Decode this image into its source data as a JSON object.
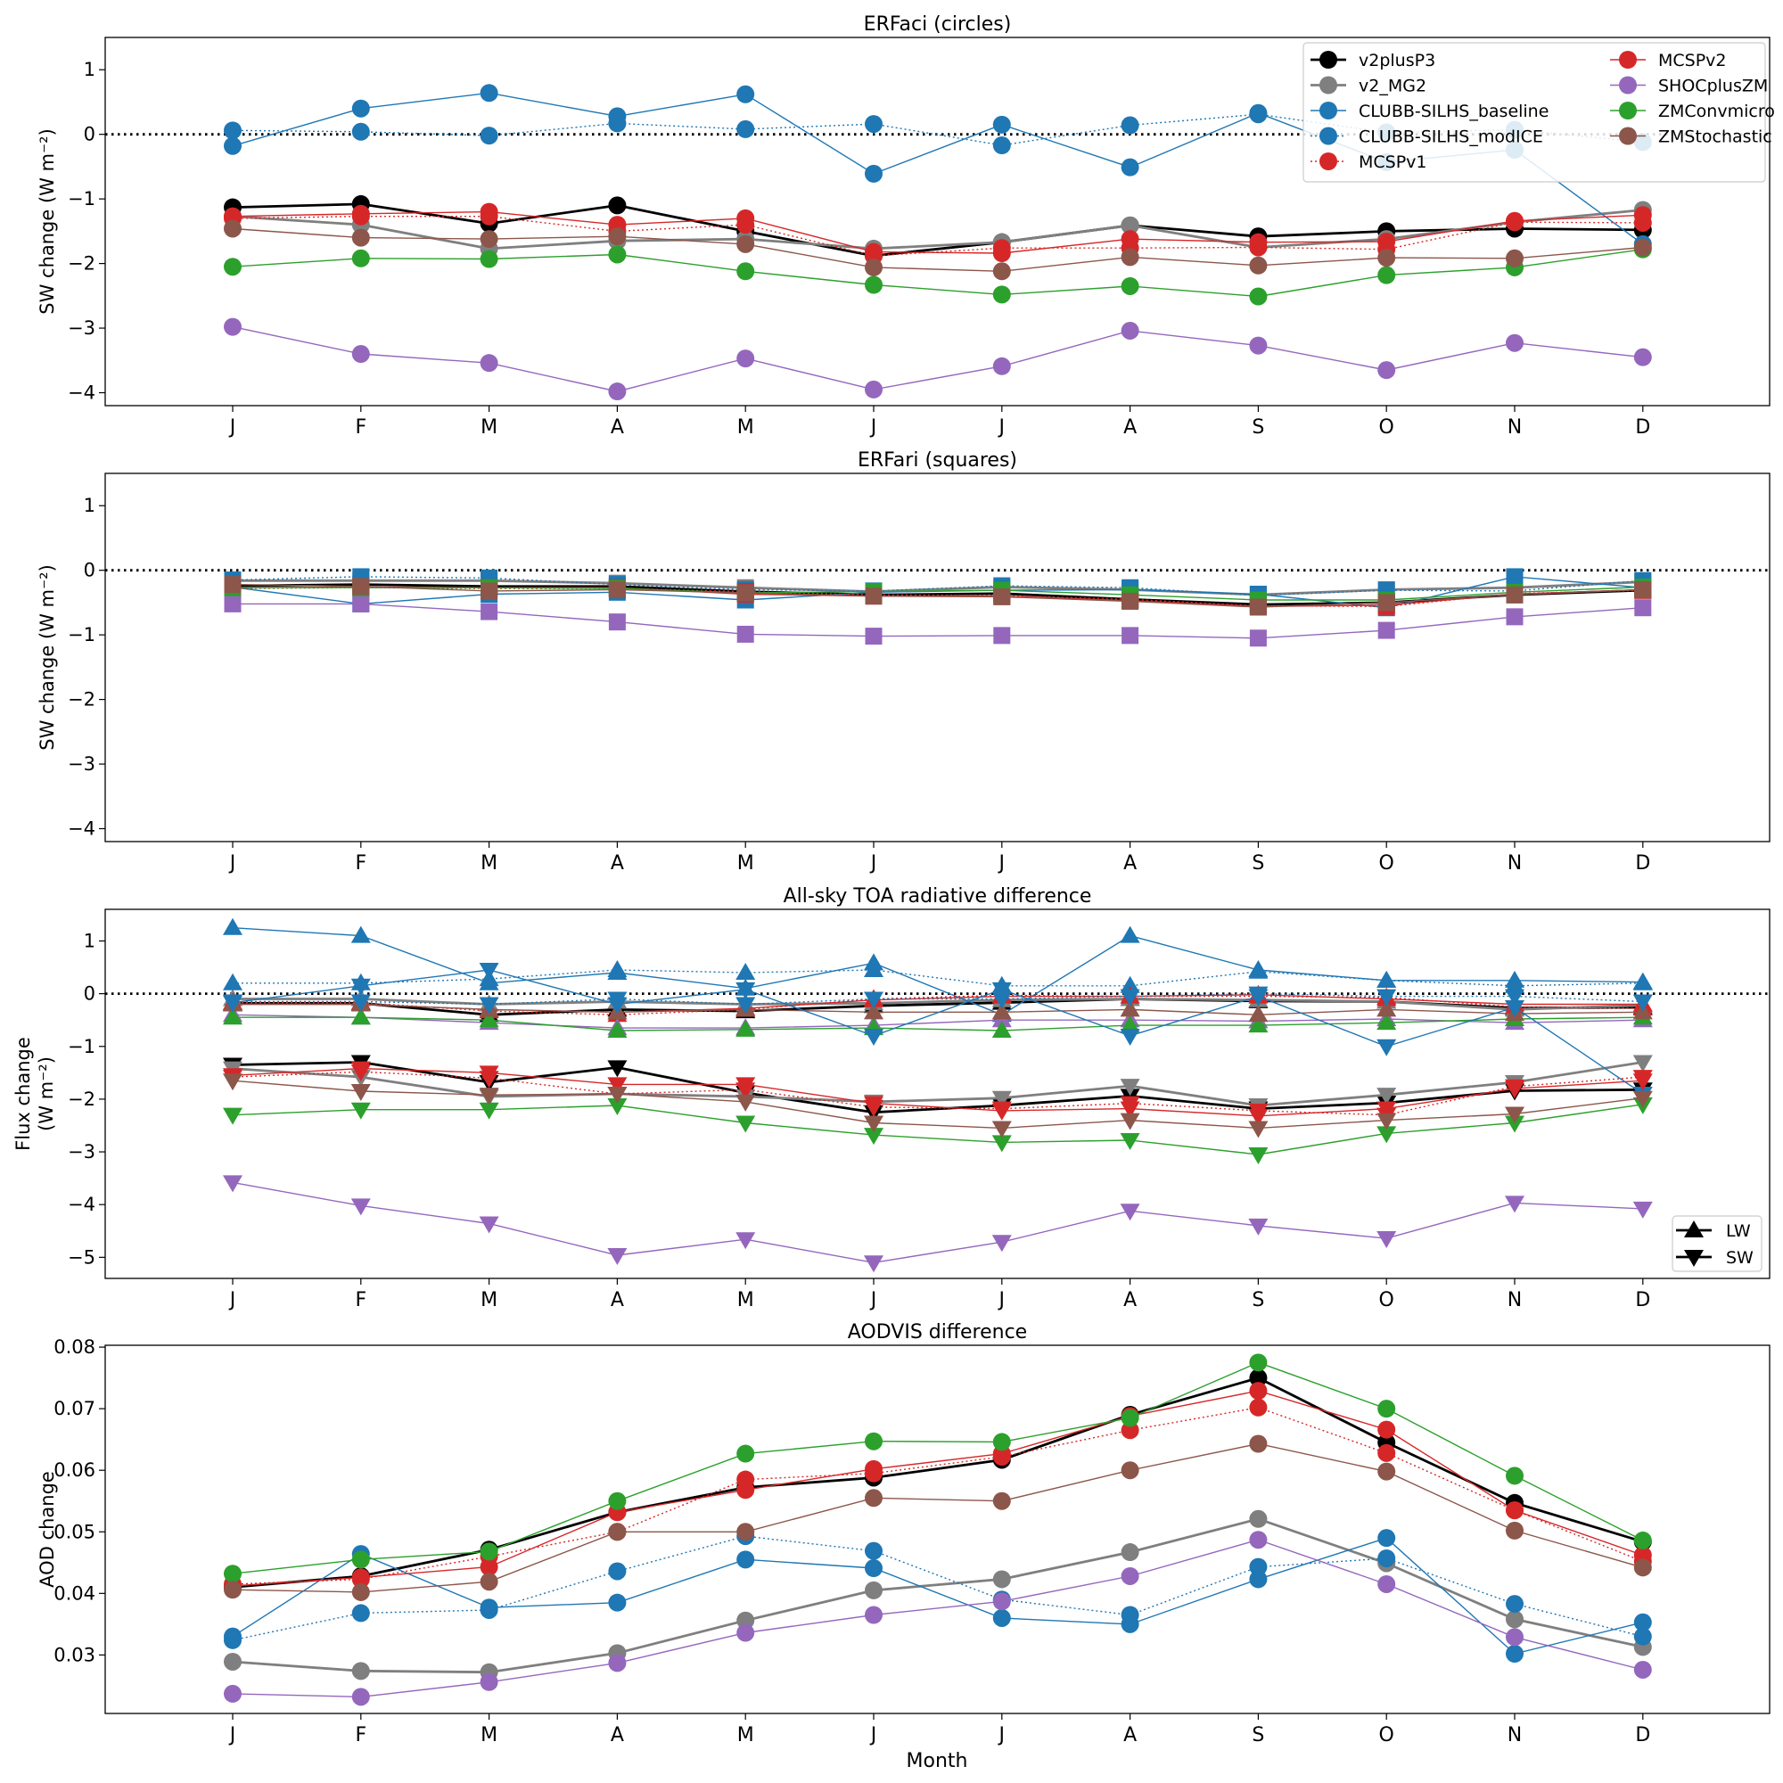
{
  "figure": {
    "xlabel": "Month"
  },
  "months": [
    "J",
    "F",
    "M",
    "A",
    "M",
    "J",
    "J",
    "A",
    "S",
    "O",
    "N",
    "D"
  ],
  "colors": {
    "v2plusP3": "#000000",
    "v2_MG2": "#7f7f7f",
    "CLUBB-SILHS_baseline": "#1f77b4",
    "CLUBB-SILHS_modICE": "#1f77b4",
    "MCSPv1": "#d62728",
    "MCSPv2": "#d62728",
    "SHOCplusZM": "#9467bd",
    "ZMConvmicro": "#2ca02c",
    "ZMStochastic": "#8c564b"
  },
  "legend": {
    "entries": [
      "v2plusP3",
      "v2_MG2",
      "CLUBB-SILHS_baseline",
      "CLUBB-SILHS_modICE",
      "MCSPv1",
      "MCSPv2",
      "SHOCplusZM",
      "ZMConvmicro",
      "ZMStochastic"
    ],
    "markers": [
      "LW",
      "SW"
    ]
  },
  "chart_data": [
    {
      "type": "line",
      "title": "ERFaci (circles)",
      "ylabel": "SW change (W m⁻²)",
      "ylim": [
        -4.2,
        1.5
      ],
      "yticks": [
        1,
        0,
        -1,
        -2,
        -3,
        -4
      ],
      "ytick_labels": [
        "1",
        "0",
        "−1",
        "−2",
        "−3",
        "−4"
      ],
      "marker": "circle",
      "series": [
        {
          "name": "v2plusP3",
          "values": [
            -1.13,
            -1.08,
            -1.38,
            -1.1,
            -1.5,
            -1.88,
            -1.67,
            -1.41,
            -1.58,
            -1.5,
            -1.46,
            -1.48
          ]
        },
        {
          "name": "v2_MG2",
          "values": [
            -1.27,
            -1.4,
            -1.77,
            -1.65,
            -1.62,
            -1.77,
            -1.67,
            -1.41,
            -1.75,
            -1.62,
            -1.36,
            -1.17
          ]
        },
        {
          "name": "CLUBB-SILHS_baseline",
          "values": [
            -0.18,
            0.4,
            0.64,
            0.28,
            0.62,
            -0.61,
            0.15,
            -0.51,
            0.33,
            -0.43,
            -0.24,
            -1.7
          ]
        },
        {
          "name": "CLUBB-SILHS_modICE",
          "values": [
            0.06,
            0.04,
            -0.02,
            0.17,
            0.08,
            0.16,
            -0.17,
            0.14,
            0.31,
            0.03,
            0.07,
            -0.12
          ]
        },
        {
          "name": "MCSPv1",
          "values": [
            -1.3,
            -1.27,
            -1.27,
            -1.5,
            -1.4,
            -1.88,
            -1.76,
            -1.76,
            -1.75,
            -1.78,
            -1.36,
            -1.37
          ]
        },
        {
          "name": "MCSPv2",
          "values": [
            -1.27,
            -1.23,
            -1.2,
            -1.4,
            -1.3,
            -1.82,
            -1.84,
            -1.62,
            -1.67,
            -1.66,
            -1.34,
            -1.25
          ]
        },
        {
          "name": "SHOCplusZM",
          "values": [
            -2.98,
            -3.4,
            -3.54,
            -3.98,
            -3.47,
            -3.95,
            -3.59,
            -3.04,
            -3.27,
            -3.65,
            -3.23,
            -3.45
          ]
        },
        {
          "name": "ZMConvmicro",
          "values": [
            -2.05,
            -1.92,
            -1.93,
            -1.86,
            -2.12,
            -2.33,
            -2.48,
            -2.35,
            -2.51,
            -2.18,
            -2.06,
            -1.78
          ]
        },
        {
          "name": "ZMStochastic",
          "values": [
            -1.46,
            -1.6,
            -1.62,
            -1.58,
            -1.7,
            -2.06,
            -2.12,
            -1.9,
            -2.03,
            -1.91,
            -1.92,
            -1.75
          ]
        }
      ]
    },
    {
      "type": "line",
      "title": "ERFari (squares)",
      "ylabel": "SW change (W m⁻²)",
      "ylim": [
        -4.2,
        1.5
      ],
      "yticks": [
        1,
        0,
        -1,
        -2,
        -3,
        -4
      ],
      "ytick_labels": [
        "1",
        "0",
        "−1",
        "−2",
        "−3",
        "−4"
      ],
      "marker": "square",
      "series": [
        {
          "name": "v2plusP3",
          "values": [
            -0.24,
            -0.22,
            -0.25,
            -0.25,
            -0.33,
            -0.38,
            -0.36,
            -0.45,
            -0.53,
            -0.5,
            -0.38,
            -0.31
          ]
        },
        {
          "name": "v2_MG2",
          "values": [
            -0.16,
            -0.16,
            -0.16,
            -0.2,
            -0.27,
            -0.33,
            -0.26,
            -0.3,
            -0.38,
            -0.3,
            -0.27,
            -0.18
          ]
        },
        {
          "name": "CLUBB-SILHS_baseline",
          "values": [
            -0.26,
            -0.52,
            -0.37,
            -0.34,
            -0.46,
            -0.34,
            -0.31,
            -0.3,
            -0.37,
            -0.58,
            -0.1,
            -0.27
          ]
        },
        {
          "name": "CLUBB-SILHS_modICE",
          "values": [
            -0.15,
            -0.1,
            -0.12,
            -0.22,
            -0.3,
            -0.32,
            -0.24,
            -0.27,
            -0.39,
            -0.31,
            -0.32,
            -0.16
          ]
        },
        {
          "name": "MCSPv1",
          "values": [
            -0.28,
            -0.27,
            -0.28,
            -0.28,
            -0.33,
            -0.38,
            -0.39,
            -0.45,
            -0.55,
            -0.56,
            -0.36,
            -0.31
          ]
        },
        {
          "name": "MCSPv2",
          "values": [
            -0.27,
            -0.26,
            -0.27,
            -0.27,
            -0.37,
            -0.4,
            -0.4,
            -0.47,
            -0.56,
            -0.54,
            -0.37,
            -0.3
          ]
        },
        {
          "name": "SHOCplusZM",
          "values": [
            -0.52,
            -0.52,
            -0.64,
            -0.8,
            -0.99,
            -1.02,
            -1.01,
            -1.01,
            -1.05,
            -0.93,
            -0.72,
            -0.58
          ]
        },
        {
          "name": "ZMConvmicro",
          "values": [
            -0.27,
            -0.27,
            -0.27,
            -0.28,
            -0.35,
            -0.33,
            -0.31,
            -0.38,
            -0.46,
            -0.46,
            -0.34,
            -0.26
          ]
        },
        {
          "name": "ZMStochastic",
          "values": [
            -0.22,
            -0.25,
            -0.32,
            -0.3,
            -0.35,
            -0.4,
            -0.41,
            -0.48,
            -0.57,
            -0.5,
            -0.38,
            -0.3
          ]
        }
      ]
    },
    {
      "type": "line",
      "title": "All-sky TOA radiative difference",
      "ylabel": "Flux change",
      "ylabel2": "(W m⁻²)",
      "ylim": [
        -5.4,
        1.6
      ],
      "yticks": [
        1,
        0,
        -1,
        -2,
        -3,
        -4,
        -5
      ],
      "ytick_labels": [
        "1",
        "0",
        "−1",
        "−2",
        "−3",
        "−4",
        "−5"
      ],
      "legend_loc": "lower-right",
      "series": [
        {
          "name": "v2plusP3",
          "component": "LW",
          "values": [
            -0.18,
            -0.18,
            -0.4,
            -0.3,
            -0.33,
            -0.23,
            -0.17,
            -0.1,
            -0.14,
            -0.15,
            -0.27,
            -0.26
          ]
        },
        {
          "name": "v2_MG2",
          "component": "LW",
          "values": [
            -0.1,
            -0.1,
            -0.2,
            -0.15,
            -0.2,
            -0.18,
            -0.12,
            -0.1,
            -0.12,
            -0.15,
            -0.3,
            -0.22
          ]
        },
        {
          "name": "CLUBB-SILHS_baseline",
          "component": "LW",
          "values": [
            1.25,
            1.1,
            0.2,
            0.4,
            0.1,
            0.58,
            -0.4,
            1.1,
            0.45,
            0.25,
            0.25,
            0.22
          ]
        },
        {
          "name": "CLUBB-SILHS_modICE",
          "component": "LW",
          "values": [
            0.2,
            0.2,
            0.28,
            0.45,
            0.4,
            0.45,
            0.15,
            0.15,
            0.42,
            0.25,
            0.15,
            0.2
          ]
        },
        {
          "name": "MCSPv1",
          "component": "LW",
          "values": [
            -0.17,
            -0.17,
            -0.33,
            -0.4,
            -0.3,
            -0.1,
            -0.03,
            -0.05,
            -0.05,
            -0.07,
            -0.25,
            -0.28
          ]
        },
        {
          "name": "MCSPv2",
          "component": "LW",
          "values": [
            -0.2,
            -0.2,
            -0.3,
            -0.35,
            -0.28,
            -0.12,
            -0.05,
            -0.05,
            -0.02,
            -0.1,
            -0.2,
            -0.2
          ]
        },
        {
          "name": "SHOCplusZM",
          "component": "LW",
          "values": [
            -0.4,
            -0.45,
            -0.55,
            -0.65,
            -0.65,
            -0.6,
            -0.5,
            -0.5,
            -0.52,
            -0.48,
            -0.55,
            -0.5
          ]
        },
        {
          "name": "ZMConvmicro",
          "component": "LW",
          "values": [
            -0.45,
            -0.45,
            -0.5,
            -0.7,
            -0.68,
            -0.65,
            -0.7,
            -0.6,
            -0.6,
            -0.55,
            -0.48,
            -0.45
          ]
        },
        {
          "name": "ZMStochastic",
          "component": "LW",
          "values": [
            -0.2,
            -0.2,
            -0.3,
            -0.35,
            -0.3,
            -0.35,
            -0.35,
            -0.3,
            -0.4,
            -0.3,
            -0.38,
            -0.35
          ]
        },
        {
          "name": "v2plusP3",
          "component": "SW",
          "values": [
            -1.35,
            -1.3,
            -1.68,
            -1.4,
            -1.88,
            -2.25,
            -2.12,
            -1.94,
            -2.18,
            -2.07,
            -1.84,
            -1.82
          ]
        },
        {
          "name": "v2_MG2",
          "component": "SW",
          "values": [
            -1.42,
            -1.58,
            -1.95,
            -1.9,
            -1.95,
            -2.05,
            -1.98,
            -1.75,
            -2.12,
            -1.92,
            -1.68,
            -1.3
          ]
        },
        {
          "name": "CLUBB-SILHS_baseline",
          "component": "SW",
          "values": [
            -0.17,
            0.15,
            0.45,
            -0.2,
            0.08,
            -0.8,
            0.08,
            -0.8,
            -0.05,
            -1.0,
            -0.26,
            -1.9
          ]
        },
        {
          "name": "CLUBB-SILHS_modICE",
          "component": "SW",
          "values": [
            -0.15,
            -0.15,
            -0.2,
            -0.1,
            -0.2,
            -0.1,
            -0.1,
            -0.05,
            0.0,
            -0.05,
            -0.05,
            -0.15
          ]
        },
        {
          "name": "MCSPv1",
          "component": "SW",
          "values": [
            -1.58,
            -1.48,
            -1.6,
            -1.9,
            -1.82,
            -2.15,
            -2.18,
            -2.08,
            -2.22,
            -2.3,
            -1.76,
            -1.58
          ]
        },
        {
          "name": "MCSPv2",
          "component": "SW",
          "values": [
            -1.55,
            -1.42,
            -1.5,
            -1.72,
            -1.72,
            -2.08,
            -2.22,
            -2.18,
            -2.32,
            -2.18,
            -1.8,
            -1.65
          ]
        },
        {
          "name": "SHOCplusZM",
          "component": "SW",
          "values": [
            -3.58,
            -4.02,
            -4.36,
            -4.96,
            -4.66,
            -5.1,
            -4.71,
            -4.12,
            -4.4,
            -4.64,
            -3.97,
            -4.08
          ]
        },
        {
          "name": "ZMConvmicro",
          "component": "SW",
          "values": [
            -2.3,
            -2.2,
            -2.2,
            -2.12,
            -2.45,
            -2.68,
            -2.82,
            -2.78,
            -3.05,
            -2.65,
            -2.45,
            -2.1
          ]
        },
        {
          "name": "ZMStochastic",
          "component": "SW",
          "values": [
            -1.65,
            -1.85,
            -1.92,
            -1.9,
            -2.05,
            -2.45,
            -2.55,
            -2.4,
            -2.55,
            -2.4,
            -2.28,
            -1.98
          ]
        }
      ]
    },
    {
      "type": "line",
      "title": "AODVIS difference",
      "ylabel": "AOD change",
      "xlabel": "Month",
      "ylim": [
        0.0205,
        0.0803
      ],
      "yticks": [
        0.08,
        0.07,
        0.06,
        0.05,
        0.04,
        0.03
      ],
      "ytick_labels": [
        "0.08",
        "0.07",
        "0.06",
        "0.05",
        "0.04",
        "0.03"
      ],
      "marker": "circle",
      "series": [
        {
          "name": "v2plusP3",
          "values": [
            0.041,
            0.0428,
            0.0471,
            0.0532,
            0.0572,
            0.0588,
            0.0617,
            0.069,
            0.075,
            0.0645,
            0.0547,
            0.0484
          ]
        },
        {
          "name": "v2_MG2",
          "values": [
            0.0289,
            0.0274,
            0.0272,
            0.0303,
            0.0356,
            0.0405,
            0.0423,
            0.0467,
            0.0521,
            0.0449,
            0.0358,
            0.0313
          ]
        },
        {
          "name": "CLUBB-SILHS_baseline",
          "values": [
            0.033,
            0.0464,
            0.0377,
            0.0385,
            0.0455,
            0.0441,
            0.036,
            0.035,
            0.0423,
            0.049,
            0.0302,
            0.0353
          ]
        },
        {
          "name": "CLUBB-SILHS_modICE",
          "values": [
            0.0324,
            0.0368,
            0.0373,
            0.0436,
            0.0493,
            0.0469,
            0.039,
            0.0365,
            0.0443,
            0.0457,
            0.0383,
            0.033
          ]
        },
        {
          "name": "MCSPv1",
          "values": [
            0.0415,
            0.0423,
            0.046,
            0.05,
            0.0585,
            0.0595,
            0.0622,
            0.0665,
            0.0702,
            0.0628,
            0.0535,
            0.0452
          ]
        },
        {
          "name": "MCSPv2",
          "values": [
            0.0412,
            0.0426,
            0.0443,
            0.0532,
            0.0568,
            0.0602,
            0.0627,
            0.0688,
            0.0729,
            0.0666,
            0.0535,
            0.0462
          ]
        },
        {
          "name": "SHOCplusZM",
          "values": [
            0.0237,
            0.0232,
            0.0256,
            0.0287,
            0.0336,
            0.0365,
            0.0387,
            0.0428,
            0.0487,
            0.0415,
            0.0329,
            0.0276
          ]
        },
        {
          "name": "ZMConvmicro",
          "values": [
            0.0432,
            0.0455,
            0.0468,
            0.055,
            0.0627,
            0.0647,
            0.0646,
            0.0685,
            0.0775,
            0.07,
            0.0591,
            0.0486
          ]
        },
        {
          "name": "ZMStochastic",
          "values": [
            0.0406,
            0.0402,
            0.0419,
            0.05,
            0.05,
            0.0555,
            0.055,
            0.06,
            0.0643,
            0.0598,
            0.0502,
            0.0442
          ]
        }
      ]
    }
  ]
}
